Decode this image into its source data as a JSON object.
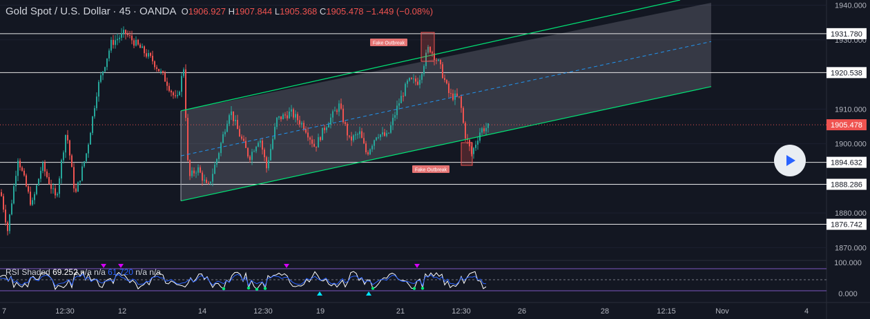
{
  "header": {
    "symbol": "Gold Spot / U.S. Dollar",
    "interval": "45",
    "exchange": "OANDA",
    "ohlc": {
      "o_label": "O",
      "o": "1906.927",
      "h_label": "H",
      "h": "1907.844",
      "l_label": "L",
      "l": "1905.368",
      "c_label": "C",
      "c": "1905.478",
      "change": "−1.449 (−0.08%)"
    }
  },
  "rsi": {
    "label": "RSI Shaded",
    "v1": "69.252",
    "v2": "n/a",
    "v3": "n/a",
    "v4": "61.720",
    "v5": "n/a",
    "v6": "n/a",
    "axis": [
      "100.000",
      "0.000"
    ]
  },
  "annotations": [
    "Fake Outbreak",
    "Fake Outbreak"
  ],
  "colors": {
    "background": "#131722",
    "up": "#26a69a",
    "down": "#ef5350",
    "channel": "#00e676",
    "midline": "#2196f3",
    "rsi_line": "#ffffff"
  },
  "chart_data": {
    "type": "candlestick",
    "y_axis": {
      "range": [
        1866.5,
        1941.5
      ],
      "ticks": [
        "1940.000",
        "1930.000",
        "1910.000",
        "1900.000",
        "1888.000",
        "1880.000",
        "1870.000"
      ]
    },
    "x_axis": {
      "ticks": [
        "7",
        "12:30",
        "12",
        "14",
        "12:30",
        "19",
        "21",
        "12:30",
        "26",
        "28",
        "12:15",
        "Nov",
        "4"
      ]
    },
    "horizontal_levels": [
      {
        "value": 1931.78,
        "label": "1931.780"
      },
      {
        "value": 1920.538,
        "label": "1920.538"
      },
      {
        "value": 1894.632,
        "label": "1894.632"
      },
      {
        "value": 1888.286,
        "label": "1888.286"
      },
      {
        "value": 1876.742,
        "label": "1876.742"
      }
    ],
    "last_price": {
      "value": 1905.478,
      "label": "1905.478"
    },
    "channel": {
      "upper": [
        [
          262,
          1909.5
        ],
        [
          985,
          1941.5
        ]
      ],
      "lower": [
        [
          262,
          1883.5
        ],
        [
          1030,
          1916.5
        ]
      ],
      "mid": [
        [
          262,
          1896.5
        ],
        [
          1030,
          1929.5
        ]
      ]
    },
    "price_path": [
      [
        0,
        1886
      ],
      [
        10,
        1875
      ],
      [
        25,
        1896
      ],
      [
        45,
        1882
      ],
      [
        60,
        1894
      ],
      [
        80,
        1884
      ],
      [
        95,
        1904
      ],
      [
        108,
        1885
      ],
      [
        125,
        1898
      ],
      [
        140,
        1916
      ],
      [
        160,
        1929
      ],
      [
        180,
        1932
      ],
      [
        200,
        1928
      ],
      [
        220,
        1924
      ],
      [
        240,
        1918
      ],
      [
        255,
        1912
      ],
      [
        265,
        1922
      ],
      [
        272,
        1890
      ],
      [
        285,
        1893
      ],
      [
        300,
        1887
      ],
      [
        315,
        1897
      ],
      [
        332,
        1910
      ],
      [
        345,
        1903
      ],
      [
        360,
        1896
      ],
      [
        375,
        1902
      ],
      [
        385,
        1893
      ],
      [
        400,
        1907
      ],
      [
        420,
        1909
      ],
      [
        440,
        1905
      ],
      [
        455,
        1899
      ],
      [
        470,
        1905
      ],
      [
        490,
        1911
      ],
      [
        505,
        1901
      ],
      [
        520,
        1903
      ],
      [
        530,
        1897
      ],
      [
        545,
        1903
      ],
      [
        560,
        1902
      ],
      [
        575,
        1911
      ],
      [
        590,
        1918
      ],
      [
        605,
        1918
      ],
      [
        620,
        1928
      ],
      [
        635,
        1923
      ],
      [
        650,
        1914
      ],
      [
        665,
        1913
      ],
      [
        672,
        1903
      ],
      [
        682,
        1897
      ],
      [
        695,
        1904
      ],
      [
        708,
        1905
      ]
    ]
  }
}
